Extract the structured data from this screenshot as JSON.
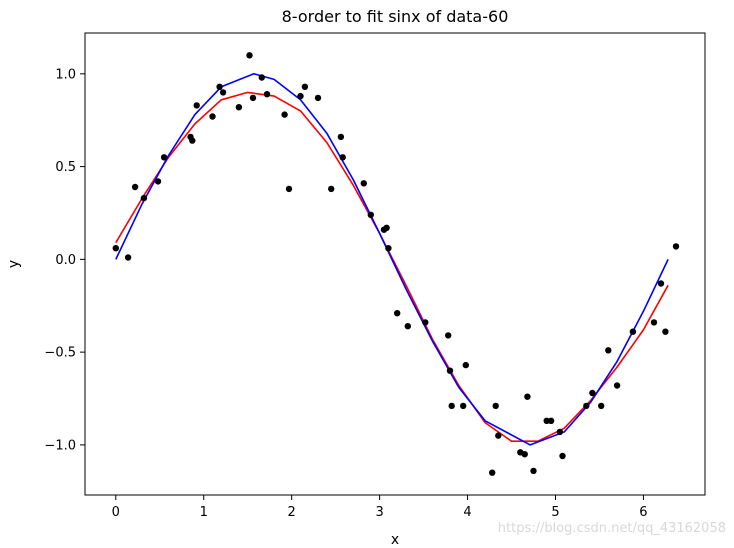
{
  "chart_data": {
    "type": "scatter",
    "title": "8-order to fit sinx of data-60",
    "xlabel": "x",
    "ylabel": "y",
    "xlim": [
      -0.35,
      6.7
    ],
    "ylim": [
      -1.27,
      1.22
    ],
    "xticks": [
      0,
      1,
      2,
      3,
      4,
      5,
      6
    ],
    "xtick_labels": [
      "0",
      "1",
      "2",
      "3",
      "4",
      "5",
      "6"
    ],
    "yticks": [
      -1.0,
      -0.5,
      0.0,
      0.5,
      1.0
    ],
    "ytick_labels": [
      "−1.0",
      "−0.5",
      "0.0",
      "0.5",
      "1.0"
    ],
    "grid": false,
    "watermark": "https://blog.csdn.net/qq_43162058",
    "series": [
      {
        "kind": "points",
        "color": "#000000",
        "x": [
          0.0,
          0.14,
          0.22,
          0.32,
          0.48,
          0.55,
          0.85,
          0.87,
          0.92,
          1.1,
          1.18,
          1.22,
          1.4,
          1.52,
          1.56,
          1.66,
          1.72,
          1.92,
          1.97,
          2.1,
          2.15,
          2.3,
          2.45,
          2.56,
          2.58,
          2.82,
          2.9,
          3.05,
          3.08,
          3.1,
          3.2,
          3.32,
          3.52,
          3.78,
          3.8,
          3.82,
          3.95,
          3.98,
          4.28,
          4.32,
          4.35,
          4.6,
          4.65,
          4.68,
          4.75,
          4.9,
          4.95,
          5.05,
          5.08,
          5.35,
          5.42,
          5.52,
          5.6,
          5.7,
          5.88,
          6.12,
          6.2,
          6.25,
          6.37
        ],
        "y": [
          0.06,
          0.01,
          0.39,
          0.33,
          0.42,
          0.55,
          0.66,
          0.64,
          0.83,
          0.77,
          0.93,
          0.9,
          0.82,
          1.1,
          0.87,
          0.98,
          0.89,
          0.78,
          0.38,
          0.88,
          0.93,
          0.87,
          0.38,
          0.66,
          0.55,
          0.41,
          0.24,
          0.16,
          0.17,
          0.06,
          -0.29,
          -0.36,
          -0.34,
          -0.41,
          -0.6,
          -0.79,
          -0.79,
          -0.57,
          -1.15,
          -0.79,
          -0.95,
          -1.04,
          -1.05,
          -0.74,
          -1.14,
          -0.87,
          -0.87,
          -0.93,
          -1.06,
          -0.79,
          -0.72,
          -0.79,
          -0.49,
          -0.68,
          -0.39,
          -0.34,
          -0.13,
          -0.39,
          0.07
        ]
      },
      {
        "kind": "line",
        "color": "#ff0000",
        "x": [
          0.0,
          0.3,
          0.6,
          0.9,
          1.2,
          1.5,
          1.8,
          2.1,
          2.4,
          2.7,
          3.0,
          3.3,
          3.6,
          3.9,
          4.2,
          4.5,
          4.8,
          5.1,
          5.4,
          5.7,
          6.0,
          6.28
        ],
        "y": [
          0.09,
          0.33,
          0.55,
          0.73,
          0.86,
          0.9,
          0.88,
          0.8,
          0.63,
          0.4,
          0.14,
          -0.14,
          -0.43,
          -0.68,
          -0.88,
          -0.98,
          -0.98,
          -0.91,
          -0.76,
          -0.58,
          -0.38,
          -0.14
        ]
      },
      {
        "kind": "line",
        "color": "#0000ff",
        "x": [
          0.0,
          0.3,
          0.6,
          0.9,
          1.2,
          1.5708,
          1.8,
          2.1,
          2.4,
          2.7,
          3.0,
          3.3,
          3.6,
          3.9,
          4.2,
          4.7124,
          5.1,
          5.4,
          5.7,
          6.0,
          6.28
        ],
        "y": [
          0.0,
          0.3,
          0.56,
          0.78,
          0.93,
          1.0,
          0.97,
          0.86,
          0.68,
          0.43,
          0.14,
          -0.16,
          -0.44,
          -0.69,
          -0.87,
          -1.0,
          -0.93,
          -0.77,
          -0.55,
          -0.28,
          0.0
        ]
      }
    ]
  }
}
